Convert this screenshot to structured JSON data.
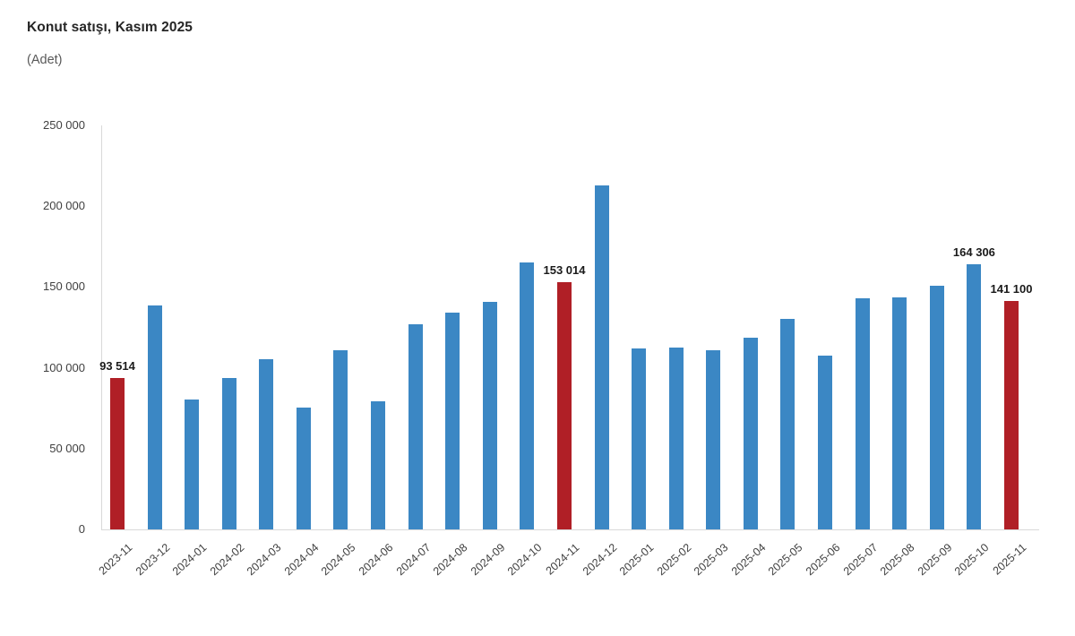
{
  "chart_data": {
    "type": "bar",
    "title": "Konut satışı, Kasım 2025",
    "subtitle": "(Adet)",
    "xlabel": "",
    "ylabel": "",
    "ylim": [
      0,
      250000
    ],
    "grid": false,
    "legend": false,
    "y_ticks": [
      {
        "label": "250 000",
        "value": 250000
      },
      {
        "label": "200 000",
        "value": 200000
      },
      {
        "label": "150 000",
        "value": 150000
      },
      {
        "label": "100 000",
        "value": 100000
      },
      {
        "label": "50 000",
        "value": 50000
      },
      {
        "label": "0",
        "value": 0
      }
    ],
    "categories": [
      "2023-11",
      "2023-12",
      "2024-01",
      "2024-02",
      "2024-03",
      "2024-04",
      "2024-05",
      "2024-06",
      "2024-07",
      "2024-08",
      "2024-09",
      "2024-10",
      "2024-11",
      "2024-12",
      "2025-01",
      "2025-02",
      "2025-03",
      "2025-04",
      "2025-05",
      "2025-06",
      "2025-07",
      "2025-08",
      "2025-09",
      "2025-10",
      "2025-11"
    ],
    "values": [
      93514,
      138600,
      80300,
      93900,
      105400,
      75600,
      110600,
      79300,
      127100,
      134200,
      140900,
      165100,
      153014,
      212600,
      112200,
      112800,
      110800,
      118400,
      130000,
      107700,
      142900,
      143300,
      150700,
      164306,
      141100
    ],
    "highlighted_indices": [
      0,
      12,
      24
    ],
    "data_labels": {
      "0": "93 514",
      "12": "153 014",
      "23": "164 306",
      "24": "141 100"
    },
    "colors": {
      "bar": "#3b87c4",
      "highlight": "#b01f26",
      "axis": "#d9d9d9",
      "tick_text": "#404040",
      "data_label_text": "#1a1a1a",
      "title_text": "#262626",
      "subtitle_text": "#595959"
    }
  }
}
